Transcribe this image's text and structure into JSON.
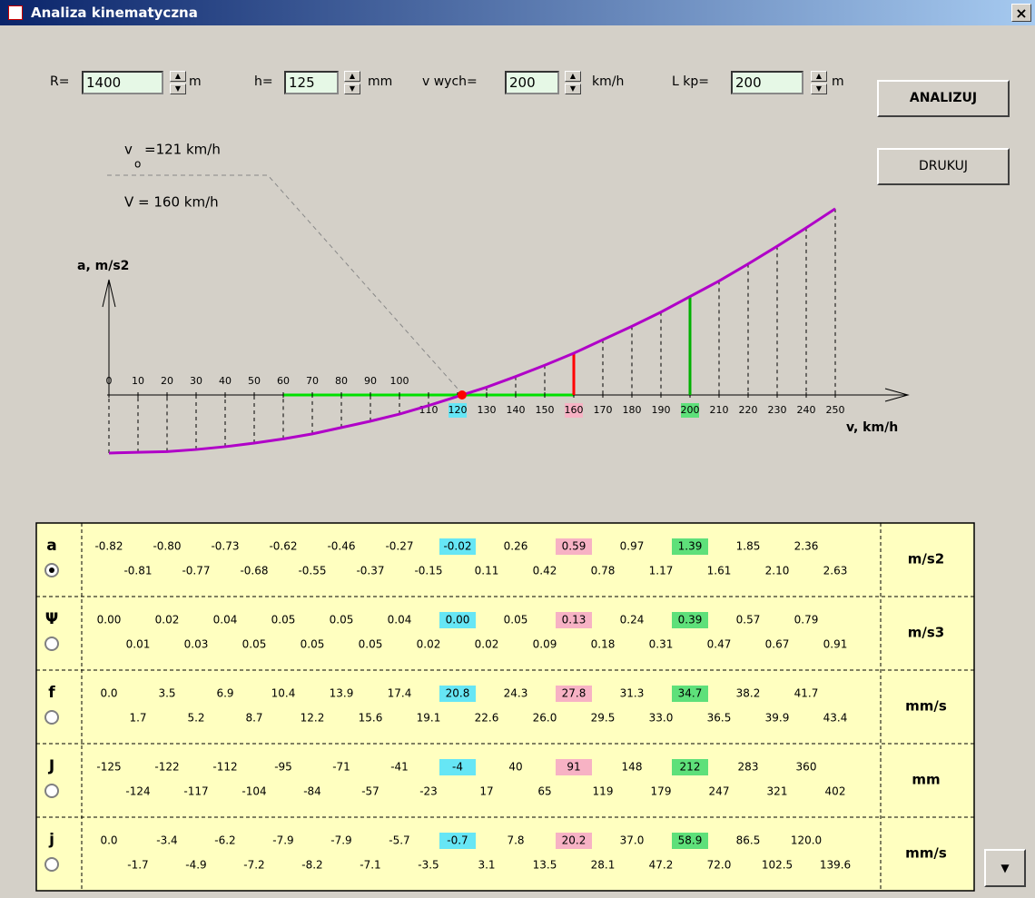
{
  "window": {
    "title": "Analiza kinematyczna",
    "close": "×"
  },
  "controls": [
    {
      "label": "R=",
      "value": "1400",
      "unit": "m"
    },
    {
      "label": "h=",
      "value": "125",
      "unit": "mm"
    },
    {
      "label": "v wych=",
      "value": "200",
      "unit": "km/h"
    },
    {
      "label": "L kp=",
      "value": "200",
      "unit": "m"
    }
  ],
  "buttons": [
    "ANALIZUJ",
    "DRUKUJ"
  ],
  "chart": {
    "vo_symbol": "v",
    "vo_sub": "o",
    "vo_text": "=121 km/h",
    "V_text": "V = 160 km/h",
    "y_axis_label": "a, m/s2",
    "x_axis_label": "v, km/h",
    "xticks": [
      0,
      10,
      20,
      30,
      40,
      50,
      60,
      70,
      80,
      90,
      100,
      110,
      120,
      130,
      140,
      150,
      160,
      170,
      180,
      190,
      200,
      210,
      220,
      230,
      240,
      250
    ],
    "curve_color": "#b000c8",
    "span": {
      "from": 6,
      "to": 16,
      "color": "#00e000"
    },
    "lines": [
      {
        "tick": 16,
        "color": "#ff0000"
      },
      {
        "tick": 20,
        "color": "#00b000"
      }
    ],
    "highlights": [
      {
        "column": 6,
        "color": "#66e6f5"
      },
      {
        "column": 8,
        "color": "#f7b2c4"
      },
      {
        "column": 10,
        "color": "#5ee07a"
      }
    ]
  },
  "table": {
    "selected": 0,
    "rows": [
      {
        "symbol": "a",
        "unit": "m/s2",
        "top": [
          "-0.82",
          "-0.80",
          "-0.73",
          "-0.62",
          "-0.46",
          "-0.27",
          "-0.02",
          "0.26",
          "0.59",
          "0.97",
          "1.39",
          "1.85",
          "2.36"
        ],
        "bottom": [
          "-0.81",
          "-0.77",
          "-0.68",
          "-0.55",
          "-0.37",
          "-0.15",
          "0.11",
          "0.42",
          "0.78",
          "1.17",
          "1.61",
          "2.10",
          "2.63"
        ]
      },
      {
        "symbol": "Ψ",
        "unit": "m/s3",
        "top": [
          "0.00",
          "0.02",
          "0.04",
          "0.05",
          "0.05",
          "0.04",
          "0.00",
          "0.05",
          "0.13",
          "0.24",
          "0.39",
          "0.57",
          "0.79"
        ],
        "bottom": [
          "0.01",
          "0.03",
          "0.05",
          "0.05",
          "0.05",
          "0.02",
          "0.02",
          "0.09",
          "0.18",
          "0.31",
          "0.47",
          "0.67",
          "0.91"
        ]
      },
      {
        "symbol": "f",
        "unit": "mm/s",
        "top": [
          "0.0",
          "3.5",
          "6.9",
          "10.4",
          "13.9",
          "17.4",
          "20.8",
          "24.3",
          "27.8",
          "31.3",
          "34.7",
          "38.2",
          "41.7"
        ],
        "bottom": [
          "1.7",
          "5.2",
          "8.7",
          "12.2",
          "15.6",
          "19.1",
          "22.6",
          "26.0",
          "29.5",
          "33.0",
          "36.5",
          "39.9",
          "43.4"
        ]
      },
      {
        "symbol": "J",
        "unit": "mm",
        "top": [
          "-125",
          "-122",
          "-112",
          "-95",
          "-71",
          "-41",
          "-4",
          "40",
          "91",
          "148",
          "212",
          "283",
          "360"
        ],
        "bottom": [
          "-124",
          "-117",
          "-104",
          "-84",
          "-57",
          "-23",
          "17",
          "65",
          "119",
          "179",
          "247",
          "321",
          "402"
        ]
      },
      {
        "symbol": "j",
        "unit": "mm/s",
        "top": [
          "0.0",
          "-3.4",
          "-6.2",
          "-7.9",
          "-7.9",
          "-5.7",
          "-0.7",
          "7.8",
          "20.2",
          "37.0",
          "58.9",
          "86.5",
          "120.0"
        ],
        "bottom": [
          "-1.7",
          "-4.9",
          "-7.2",
          "-8.2",
          "-7.1",
          "-3.5",
          "3.1",
          "13.5",
          "28.1",
          "47.2",
          "72.0",
          "102.5",
          "139.6"
        ]
      }
    ]
  }
}
